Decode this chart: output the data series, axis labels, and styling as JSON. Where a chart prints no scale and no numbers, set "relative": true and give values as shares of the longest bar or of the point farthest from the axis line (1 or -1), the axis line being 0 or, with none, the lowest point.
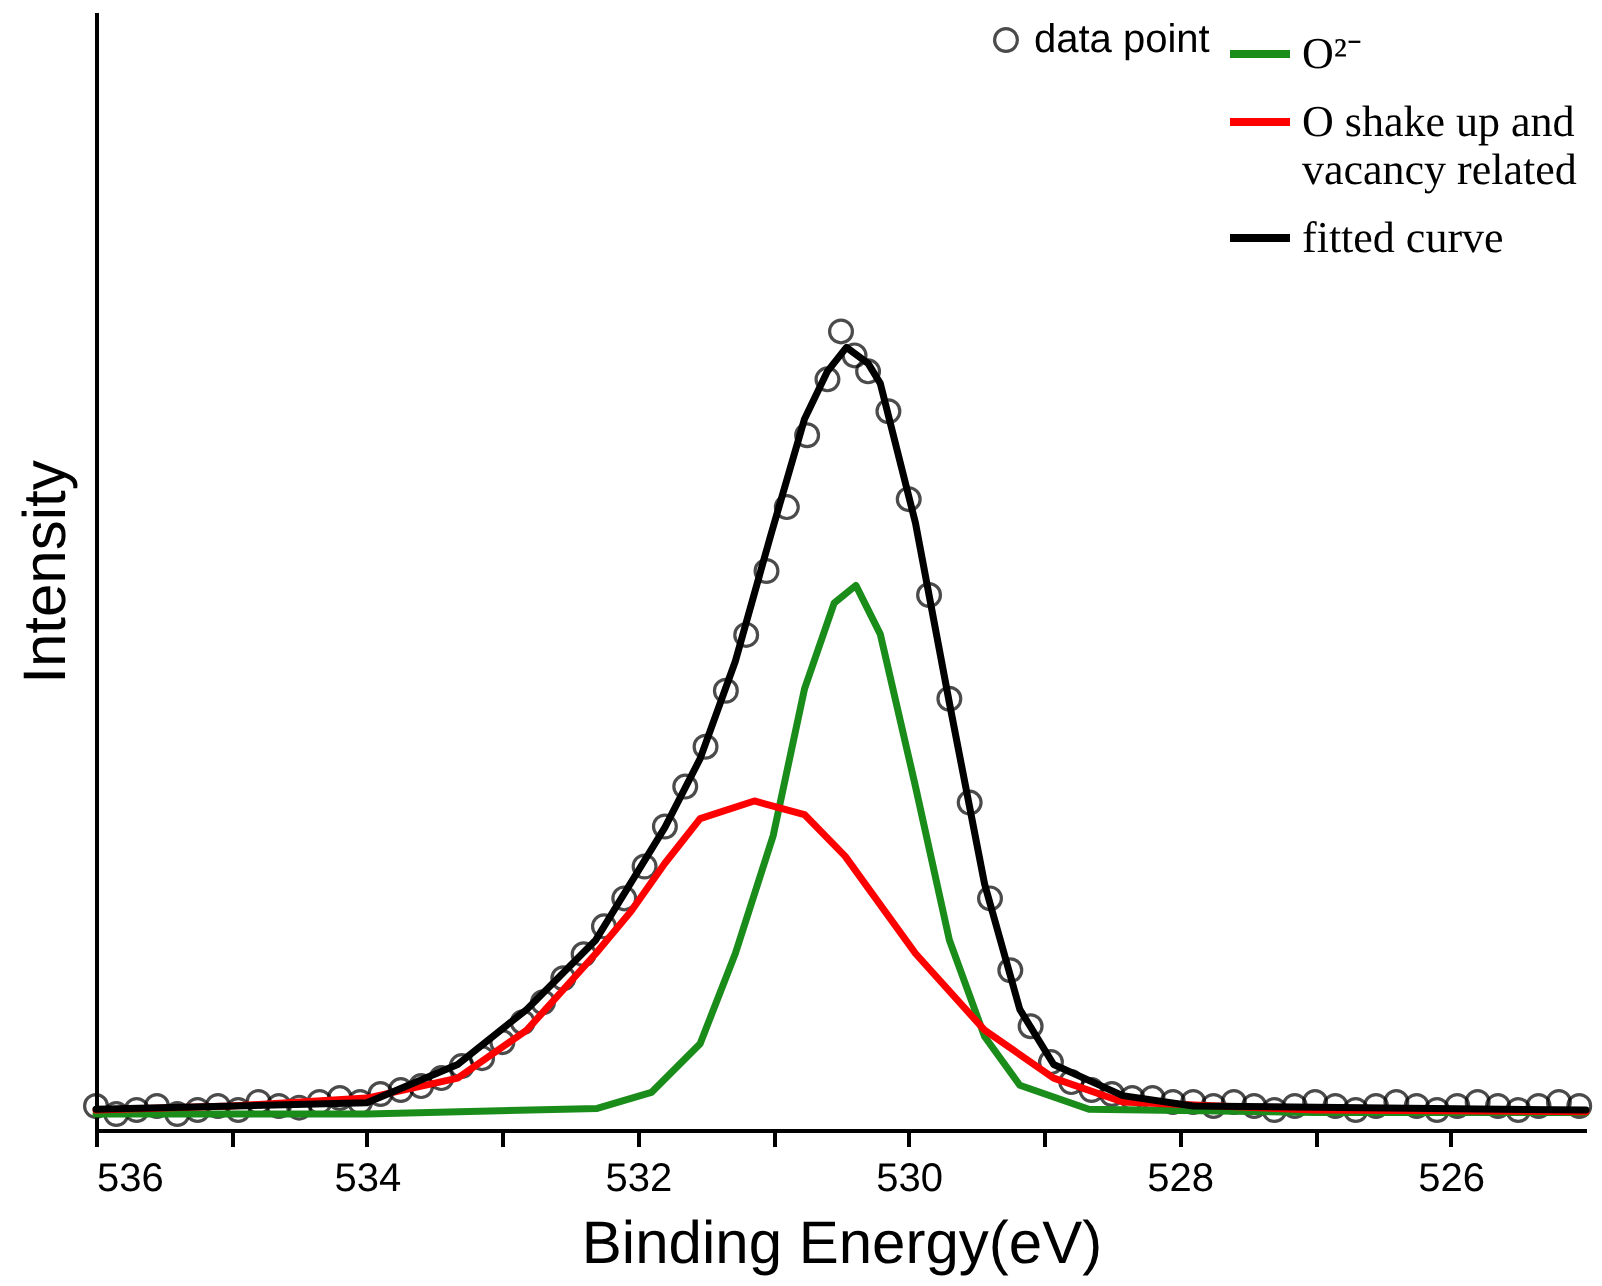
{
  "chart_data": {
    "type": "line",
    "xlabel": "Binding Energy(eV)",
    "ylabel": "Intensity",
    "relative": true,
    "xlim": [
      536,
      525
    ],
    "xticks": [
      536,
      {
        "value": 535,
        "label": null
      },
      534,
      {
        "value": 533,
        "label": null
      },
      532,
      {
        "value": 531,
        "label": null
      },
      530,
      {
        "value": 529,
        "label": null
      },
      528,
      {
        "value": 527,
        "label": null
      },
      526
    ],
    "grid": false,
    "legend": "top right",
    "series": [
      {
        "name": "data point",
        "type": "scatter",
        "marker": "circle",
        "color": "#000000",
        "x": [
          536.0,
          535.85,
          535.7,
          535.55,
          535.4,
          535.25,
          535.1,
          534.95,
          534.8,
          534.65,
          534.5,
          534.35,
          534.2,
          534.05,
          533.9,
          533.75,
          533.6,
          533.45,
          533.3,
          533.15,
          533.0,
          532.85,
          532.7,
          532.55,
          532.4,
          532.25,
          532.1,
          531.95,
          531.8,
          531.65,
          531.5,
          531.35,
          531.2,
          531.05,
          530.9,
          530.75,
          530.6,
          530.5,
          530.4,
          530.3,
          530.15,
          530.0,
          529.85,
          529.7,
          529.55,
          529.4,
          529.25,
          529.1,
          528.95,
          528.8,
          528.65,
          528.5,
          528.35,
          528.2,
          528.05,
          527.9,
          527.75,
          527.6,
          527.45,
          527.3,
          527.15,
          527.0,
          526.85,
          526.7,
          526.55,
          526.4,
          526.25,
          526.1,
          525.95,
          525.8,
          525.65,
          525.5,
          525.35,
          525.2,
          525.05
        ],
        "values": [
          0.03,
          0.02,
          0.025,
          0.03,
          0.02,
          0.025,
          0.03,
          0.025,
          0.035,
          0.03,
          0.028,
          0.035,
          0.04,
          0.035,
          0.045,
          0.05,
          0.055,
          0.065,
          0.08,
          0.09,
          0.11,
          0.135,
          0.16,
          0.19,
          0.22,
          0.255,
          0.29,
          0.33,
          0.38,
          0.43,
          0.48,
          0.55,
          0.62,
          0.7,
          0.78,
          0.87,
          0.94,
          1.0,
          0.97,
          0.95,
          0.9,
          0.79,
          0.67,
          0.54,
          0.41,
          0.29,
          0.2,
          0.13,
          0.085,
          0.06,
          0.05,
          0.045,
          0.04,
          0.04,
          0.035,
          0.035,
          0.03,
          0.035,
          0.03,
          0.025,
          0.03,
          0.035,
          0.03,
          0.025,
          0.03,
          0.035,
          0.03,
          0.025,
          0.03,
          0.035,
          0.03,
          0.025,
          0.03,
          0.035,
          0.03
        ]
      },
      {
        "name": "O²⁻",
        "color": "#1a8c1a",
        "x": [
          536,
          534,
          532.3,
          531.9,
          531.54,
          531.28,
          531.0,
          530.77,
          530.55,
          530.39,
          530.21,
          529.95,
          529.7,
          529.44,
          529.18,
          528.67,
          527,
          525
        ],
        "values": [
          0.02,
          0.02,
          0.027,
          0.047,
          0.108,
          0.221,
          0.369,
          0.552,
          0.66,
          0.682,
          0.621,
          0.43,
          0.238,
          0.117,
          0.056,
          0.026,
          0.022,
          0.022
        ]
      },
      {
        "name": "O shake up and vacancy related",
        "color": "#ff0000",
        "x": [
          536,
          535,
          534,
          533.33,
          532.82,
          532.31,
          532.05,
          531.8,
          531.54,
          531.14,
          530.77,
          530.47,
          529.95,
          529.44,
          528.93,
          528.42,
          527,
          525
        ],
        "values": [
          0.025,
          0.03,
          0.04,
          0.065,
          0.125,
          0.221,
          0.274,
          0.334,
          0.39,
          0.412,
          0.395,
          0.343,
          0.221,
          0.125,
          0.065,
          0.035,
          0.025,
          0.023
        ]
      },
      {
        "name": "fitted curve",
        "color": "#000000",
        "x": [
          536,
          534,
          533.33,
          532.82,
          532.31,
          531.8,
          531.54,
          531.28,
          531.02,
          530.77,
          530.6,
          530.46,
          530.3,
          530.21,
          529.95,
          529.7,
          529.44,
          529.18,
          528.93,
          528.42,
          527.9,
          525
        ],
        "values": [
          0.026,
          0.034,
          0.082,
          0.151,
          0.238,
          0.379,
          0.465,
          0.587,
          0.744,
          0.89,
          0.95,
          0.98,
          0.96,
          0.935,
          0.76,
          0.535,
          0.308,
          0.151,
          0.082,
          0.043,
          0.03,
          0.025
        ]
      }
    ]
  }
}
